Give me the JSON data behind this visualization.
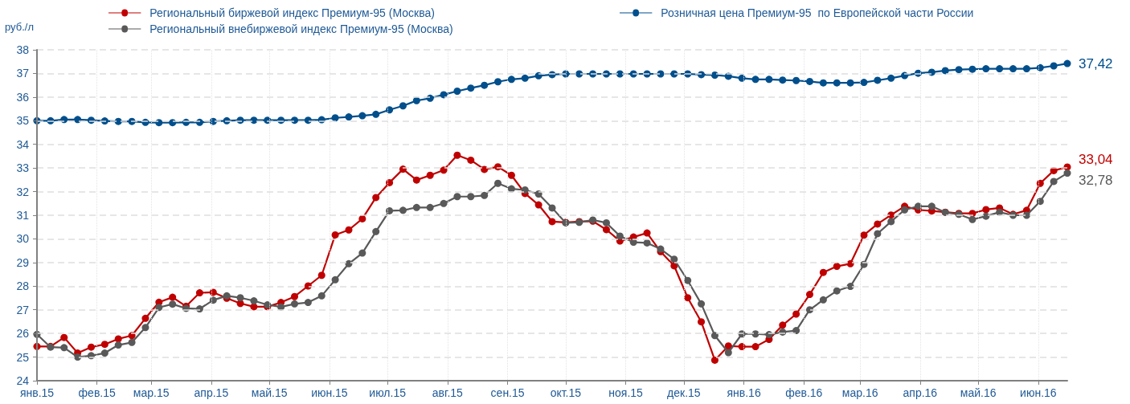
{
  "chart_data": {
    "type": "line",
    "ylabel": "руб./л",
    "x": [
      "2015-01-01",
      "2015-01-08",
      "2015-01-15",
      "2015-01-22",
      "2015-01-29",
      "2015-02-05",
      "2015-02-12",
      "2015-02-19",
      "2015-02-26",
      "2015-03-05",
      "2015-03-12",
      "2015-03-19",
      "2015-03-26",
      "2015-04-02",
      "2015-04-09",
      "2015-04-16",
      "2015-04-23",
      "2015-04-30",
      "2015-05-07",
      "2015-05-14",
      "2015-05-21",
      "2015-05-28",
      "2015-06-04",
      "2015-06-11",
      "2015-06-18",
      "2015-06-25",
      "2015-07-02",
      "2015-07-09",
      "2015-07-16",
      "2015-07-23",
      "2015-07-30",
      "2015-08-06",
      "2015-08-13",
      "2015-08-20",
      "2015-08-27",
      "2015-09-03",
      "2015-09-10",
      "2015-09-17",
      "2015-09-24",
      "2015-10-01",
      "2015-10-08",
      "2015-10-15",
      "2015-10-22",
      "2015-10-29",
      "2015-11-05",
      "2015-11-12",
      "2015-11-19",
      "2015-11-26",
      "2015-12-03",
      "2015-12-10",
      "2015-12-17",
      "2015-12-24",
      "2015-12-31",
      "2016-01-07",
      "2016-01-14",
      "2016-01-21",
      "2016-01-28",
      "2016-02-04",
      "2016-02-11",
      "2016-02-18",
      "2016-02-25",
      "2016-03-03",
      "2016-03-10",
      "2016-03-17",
      "2016-03-24",
      "2016-03-31",
      "2016-04-07",
      "2016-04-14",
      "2016-04-21",
      "2016-04-28",
      "2016-05-05",
      "2016-05-12",
      "2016-05-19",
      "2016-05-26",
      "2016-06-02",
      "2016-06-09",
      "2016-06-16"
    ],
    "series": [
      {
        "name": "Региональный биржевой индекс Премиум-95 (Москва)",
        "color": "#c00000",
        "values": [
          25.45,
          25.45,
          25.83,
          25.17,
          25.42,
          25.54,
          25.77,
          25.91,
          26.64,
          27.32,
          27.53,
          27.15,
          27.72,
          27.74,
          27.49,
          27.27,
          27.13,
          27.13,
          27.31,
          27.56,
          28.01,
          28.46,
          30.17,
          30.38,
          30.85,
          31.75,
          32.38,
          32.95,
          32.49,
          32.69,
          32.91,
          33.54,
          33.33,
          32.94,
          33.05,
          32.69,
          31.92,
          31.44,
          30.73,
          30.7,
          30.73,
          30.75,
          30.39,
          29.91,
          30.08,
          30.25,
          29.46,
          28.86,
          27.51,
          26.49,
          24.87,
          25.47,
          25.44,
          25.44,
          25.75,
          26.35,
          26.82,
          27.65,
          28.58,
          28.84,
          28.95,
          30.16,
          30.63,
          31.01,
          31.38,
          31.23,
          31.18,
          31.13,
          31.08,
          31.08,
          31.24,
          31.31,
          31.04,
          31.21,
          32.35,
          32.89,
          33.04
        ]
      },
      {
        "name": "Региональный внебиржевой индекс Премиум-95 (Москва)",
        "color": "#595959",
        "values": [
          25.96,
          25.42,
          25.4,
          25.0,
          25.06,
          25.17,
          25.51,
          25.62,
          26.25,
          27.1,
          27.24,
          27.06,
          27.04,
          27.41,
          27.59,
          27.51,
          27.38,
          27.21,
          27.12,
          27.25,
          27.31,
          27.59,
          28.27,
          28.95,
          29.4,
          30.31,
          31.19,
          31.21,
          31.33,
          31.33,
          31.5,
          31.79,
          31.79,
          31.84,
          32.35,
          32.12,
          32.07,
          31.9,
          31.31,
          30.68,
          30.7,
          30.8,
          30.68,
          30.12,
          29.86,
          29.83,
          29.57,
          29.14,
          28.24,
          27.25,
          25.91,
          25.19,
          25.98,
          25.98,
          25.95,
          26.06,
          26.12,
          27.0,
          27.42,
          27.8,
          27.99,
          28.92,
          30.22,
          30.73,
          31.23,
          31.38,
          31.38,
          31.12,
          31.04,
          30.82,
          30.96,
          31.13,
          31.0,
          31.0,
          31.59,
          32.43,
          32.78
        ]
      },
      {
        "name": "Розничная цена Премиум-95  по Европейской части России",
        "color": "#004f8c",
        "values": [
          35.0,
          35.0,
          35.05,
          35.05,
          35.02,
          34.99,
          34.97,
          34.97,
          34.93,
          34.92,
          34.92,
          34.93,
          34.93,
          34.97,
          35.0,
          35.02,
          35.02,
          35.02,
          35.02,
          35.02,
          35.02,
          35.04,
          35.12,
          35.16,
          35.21,
          35.27,
          35.46,
          35.63,
          35.85,
          35.95,
          36.1,
          36.25,
          36.38,
          36.5,
          36.65,
          36.75,
          36.8,
          36.9,
          36.95,
          36.98,
          36.98,
          36.98,
          36.98,
          36.98,
          36.98,
          36.98,
          36.98,
          36.98,
          36.98,
          36.95,
          36.93,
          36.88,
          36.8,
          36.75,
          36.75,
          36.72,
          36.7,
          36.66,
          36.6,
          36.6,
          36.6,
          36.62,
          36.71,
          36.8,
          36.91,
          37.01,
          37.05,
          37.12,
          37.16,
          37.18,
          37.2,
          37.2,
          37.2,
          37.2,
          37.24,
          37.32,
          37.42
        ]
      }
    ],
    "annotations": [
      {
        "text": "37,42",
        "x": "2016-06-16",
        "y": 37.42
      },
      {
        "text": "33,04",
        "x": "2016-06-16",
        "y": 33.04
      },
      {
        "text": "32,78",
        "x": "2016-06-16",
        "y": 32.78
      }
    ],
    "xlim": [
      "2015-01-01",
      "2016-06-16"
    ],
    "xticks": [
      {
        "value": "2015-01-01",
        "label": "янв.15"
      },
      {
        "value": "2015-02-01",
        "label": "фев.15"
      },
      {
        "value": "2015-03-01",
        "label": "мар.15"
      },
      {
        "value": "2015-04-01",
        "label": "апр.15"
      },
      {
        "value": "2015-05-01",
        "label": "май.15"
      },
      {
        "value": "2015-06-01",
        "label": "июн.15"
      },
      {
        "value": "2015-07-01",
        "label": "июл.15"
      },
      {
        "value": "2015-08-01",
        "label": "авг.15"
      },
      {
        "value": "2015-09-01",
        "label": "сен.15"
      },
      {
        "value": "2015-10-01",
        "label": "окт.15"
      },
      {
        "value": "2015-11-01",
        "label": "ноя.15"
      },
      {
        "value": "2015-12-01",
        "label": "дек.15"
      },
      {
        "value": "2016-01-01",
        "label": "янв.16"
      },
      {
        "value": "2016-02-01",
        "label": "фев.16"
      },
      {
        "value": "2016-03-01",
        "label": "мар.16"
      },
      {
        "value": "2016-04-01",
        "label": "апр.16"
      },
      {
        "value": "2016-05-01",
        "label": "май.16"
      },
      {
        "value": "2016-06-01",
        "label": "июн.16"
      }
    ],
    "ylim": [
      24,
      38
    ],
    "yticks": [
      24,
      25,
      26,
      27,
      28,
      29,
      30,
      31,
      32,
      33,
      34,
      35,
      36,
      37,
      38
    ],
    "grid": true,
    "legend": "top",
    "marker": "circle",
    "line_style": "solid"
  }
}
